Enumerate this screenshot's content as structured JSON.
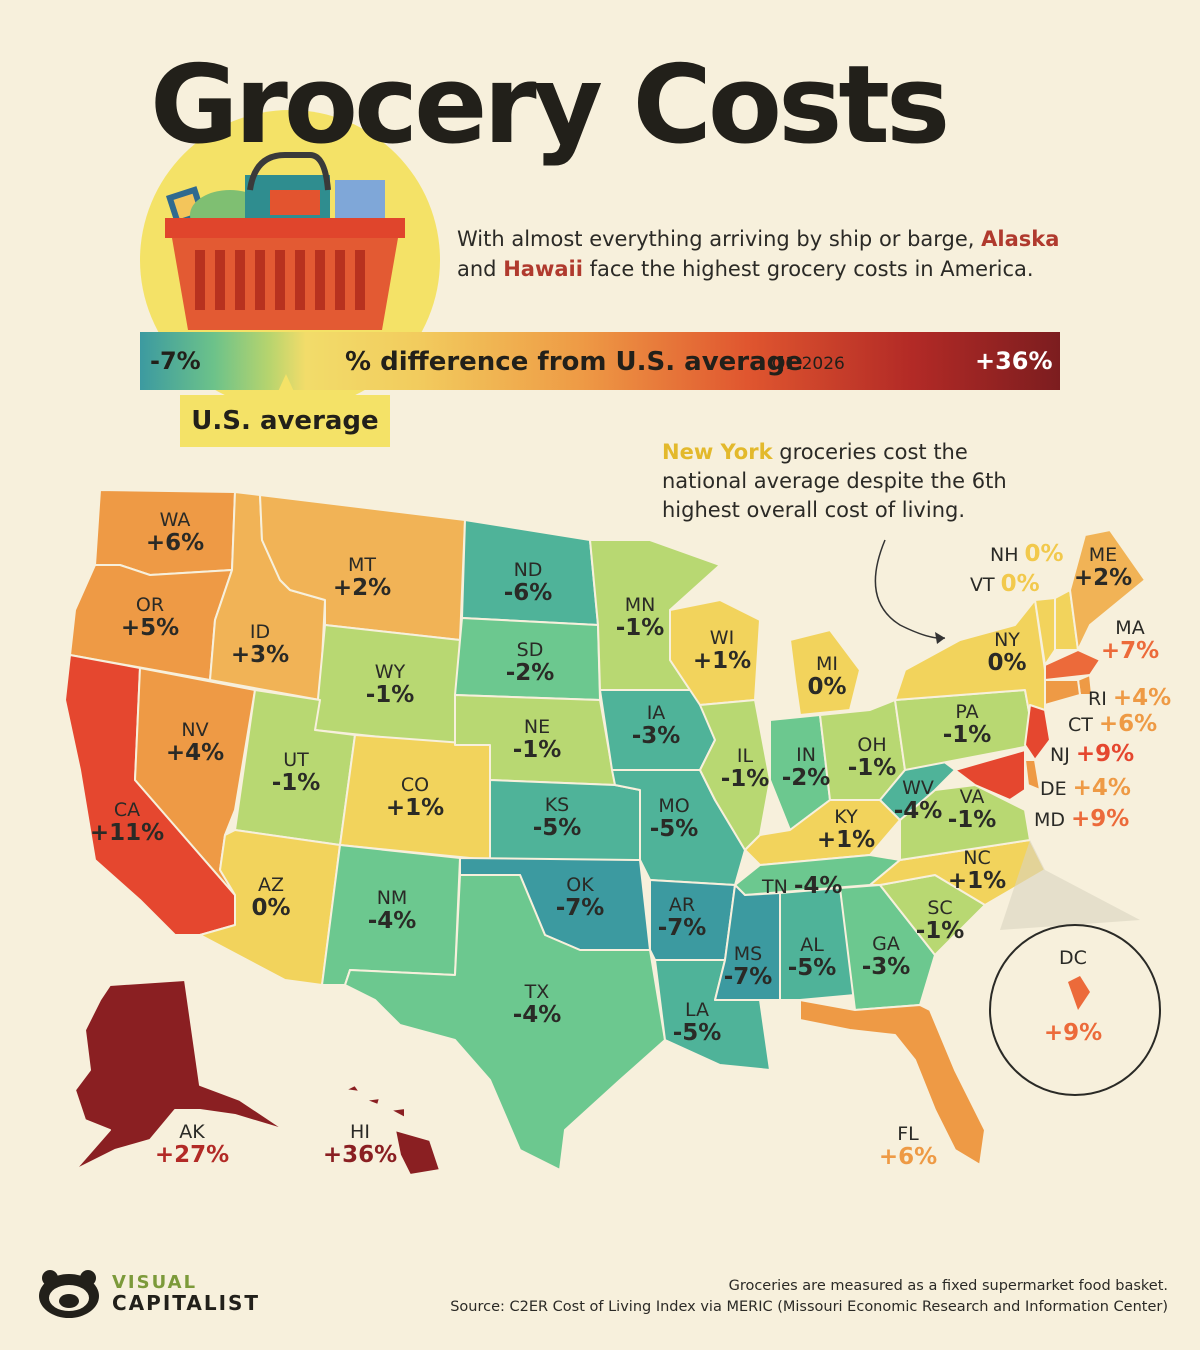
{
  "title": "Grocery Costs",
  "subtitle": {
    "part1": "With almost everything arriving by ship or barge,",
    "alaska": "Alaska",
    "part2": "and",
    "hawaii": "Hawaii",
    "part3": "face the highest grocery costs in America."
  },
  "scale": {
    "min": "-7%",
    "label": "% difference from U.S. average",
    "period": "Q1 2026",
    "max": "+36%",
    "average_label": "U.S. average"
  },
  "callout": {
    "highlight": "New York",
    "text": "groceries cost the national average despite the 6th highest overall cost of living."
  },
  "colors": {
    "dark_teal": "#3c9aa0",
    "teal": "#4fb399",
    "green": "#6cc88f",
    "light_green": "#b8d872",
    "yellow": "#f2d35c",
    "light_orange": "#f1b356",
    "orange": "#ee9a45",
    "red_orange": "#ec6a3a",
    "red": "#e5472f",
    "dark_red": "#8a1f22"
  },
  "states": [
    {
      "abbr": "WA",
      "value": "+6%"
    },
    {
      "abbr": "OR",
      "value": "+5%"
    },
    {
      "abbr": "CA",
      "value": "+11%"
    },
    {
      "abbr": "ID",
      "value": "+3%"
    },
    {
      "abbr": "NV",
      "value": "+4%"
    },
    {
      "abbr": "MT",
      "value": "+2%"
    },
    {
      "abbr": "WY",
      "value": "-1%"
    },
    {
      "abbr": "UT",
      "value": "-1%"
    },
    {
      "abbr": "AZ",
      "value": "0%"
    },
    {
      "abbr": "CO",
      "value": "+1%"
    },
    {
      "abbr": "NM",
      "value": "-4%"
    },
    {
      "abbr": "ND",
      "value": "-6%"
    },
    {
      "abbr": "SD",
      "value": "-2%"
    },
    {
      "abbr": "NE",
      "value": "-1%"
    },
    {
      "abbr": "KS",
      "value": "-5%"
    },
    {
      "abbr": "OK",
      "value": "-7%"
    },
    {
      "abbr": "TX",
      "value": "-4%"
    },
    {
      "abbr": "MN",
      "value": "-1%"
    },
    {
      "abbr": "IA",
      "value": "-3%"
    },
    {
      "abbr": "MO",
      "value": "-5%"
    },
    {
      "abbr": "AR",
      "value": "-7%"
    },
    {
      "abbr": "LA",
      "value": "-5%"
    },
    {
      "abbr": "WI",
      "value": "+1%"
    },
    {
      "abbr": "IL",
      "value": "-1%"
    },
    {
      "abbr": "MI",
      "value": "0%"
    },
    {
      "abbr": "IN",
      "value": "-2%"
    },
    {
      "abbr": "OH",
      "value": "-1%"
    },
    {
      "abbr": "KY",
      "value": "+1%"
    },
    {
      "abbr": "TN",
      "value": "-4%"
    },
    {
      "abbr": "MS",
      "value": "-7%"
    },
    {
      "abbr": "AL",
      "value": "-5%"
    },
    {
      "abbr": "GA",
      "value": "-3%"
    },
    {
      "abbr": "FL",
      "value": "+6%"
    },
    {
      "abbr": "SC",
      "value": "-1%"
    },
    {
      "abbr": "NC",
      "value": "+1%"
    },
    {
      "abbr": "VA",
      "value": "-1%"
    },
    {
      "abbr": "WV",
      "value": "-4%"
    },
    {
      "abbr": "PA",
      "value": "-1%"
    },
    {
      "abbr": "NY",
      "value": "0%"
    },
    {
      "abbr": "VT",
      "value": "0%"
    },
    {
      "abbr": "NH",
      "value": "0%"
    },
    {
      "abbr": "ME",
      "value": "+2%"
    },
    {
      "abbr": "MA",
      "value": "+7%"
    },
    {
      "abbr": "RI",
      "value": "+4%"
    },
    {
      "abbr": "CT",
      "value": "+6%"
    },
    {
      "abbr": "NJ",
      "value": "+9%"
    },
    {
      "abbr": "DE",
      "value": "+4%"
    },
    {
      "abbr": "MD",
      "value": "+9%"
    },
    {
      "abbr": "DC",
      "value": "+9%"
    },
    {
      "abbr": "AK",
      "value": "+27%"
    },
    {
      "abbr": "HI",
      "value": "+36%"
    }
  ],
  "footer": {
    "note": "Groceries are measured as a fixed supermarket food basket.",
    "source": "Source: C2ER Cost of Living Index via MERIC (Missouri Economic Research and Information Center)"
  },
  "logo": {
    "line1": "VISUAL",
    "line2": "CAPITALIST"
  }
}
